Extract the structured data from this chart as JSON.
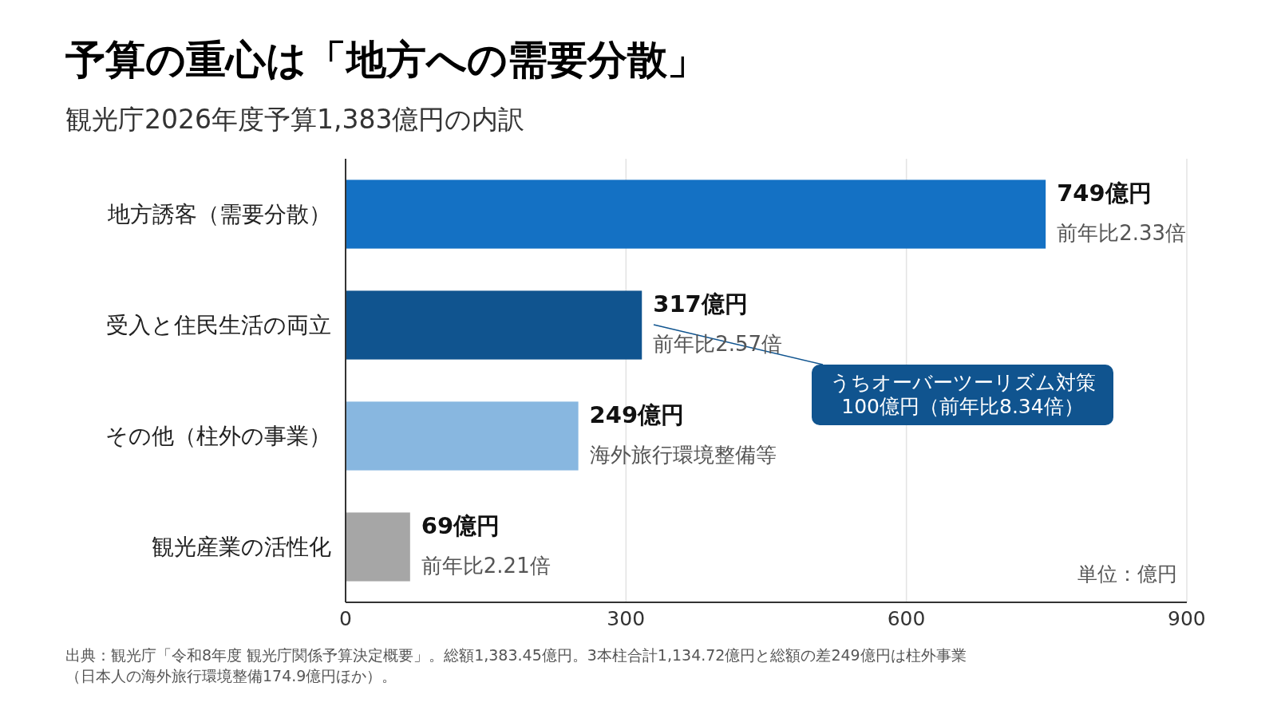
{
  "chart_data": {
    "type": "bar",
    "orientation": "horizontal",
    "title": "予算の重心は「地方への需要分散」",
    "subtitle": "観光庁2026年度予算1,383億円の内訳",
    "categories": [
      "地方誘客（需要分散）",
      "受入と住民生活の両立",
      "その他（柱外の事業）",
      "観光産業の活性化"
    ],
    "values": [
      749,
      317,
      249,
      69
    ],
    "colors": [
      "#1471c4",
      "#10548f",
      "#88b7e0",
      "#a6a6a6"
    ],
    "value_labels": [
      "749億円",
      "317億円",
      "249億円",
      "69億円"
    ],
    "xlim": [
      0,
      900
    ],
    "xticks": [
      0,
      300,
      600,
      900
    ],
    "grid": "x",
    "annotations": [
      {
        "text": "前年比2.33倍",
        "x": 749,
        "y": "地方誘客（需要分散）"
      },
      {
        "text": "前年比2.57倍",
        "x": 317,
        "y": "受入と住民生活の両立"
      },
      {
        "text": "海外旅行環境整備等",
        "x": 249,
        "y": "その他（柱外の事業）"
      },
      {
        "text": "前年比2.21倍",
        "x": 69,
        "y": "観光産業の活性化"
      },
      "うちオーバーツーリズム対策100億円（前年比8.34倍）",
      "単位：億円",
      "出典：観光庁「令和8年度 観光庁関係予算決定概要」。総額1,383.45億円。3本柱合計1,134.72億円と総額の差249億円は柱外事業（日本人の海外旅行環境整備174.9億円ほか）。"
    ]
  }
}
